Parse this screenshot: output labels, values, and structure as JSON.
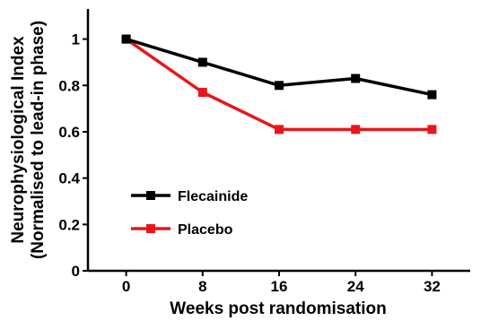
{
  "chart_data": {
    "type": "line",
    "xlabel": "Weeks post randomisation",
    "ylabel_line1": "Neurophysiological Index",
    "ylabel_line2": "(Normalised to lead-in phase)",
    "x": [
      0,
      8,
      16,
      24,
      32
    ],
    "x_ticks": [
      "0",
      "8",
      "16",
      "24",
      "32"
    ],
    "y_ticks": [
      "0",
      "0.2",
      "0.4",
      "0.6",
      "0.8",
      "1"
    ],
    "xlim": [
      -4,
      36
    ],
    "ylim": [
      0,
      1.13
    ],
    "legend_position": "lower-left",
    "series": [
      {
        "name": "Flecainide",
        "values": [
          1.0,
          0.9,
          0.8,
          0.83,
          0.76
        ],
        "color": "#000000"
      },
      {
        "name": "Placebo",
        "values": [
          1.0,
          0.77,
          0.61,
          0.61,
          0.61
        ],
        "color": "#e8161b"
      }
    ]
  }
}
